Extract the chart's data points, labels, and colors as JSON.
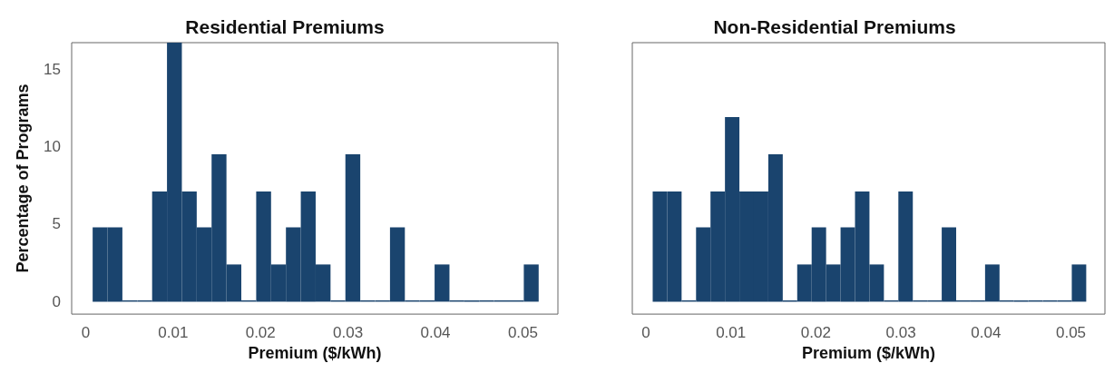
{
  "chart_data": [
    {
      "type": "histogram",
      "title": "Residential Premiums",
      "xlabel": "Premium ($/kWh)",
      "ylabel": "Percentage of Programs",
      "color": "#1a446e",
      "bins": [
        0.0008,
        0.0025,
        0.0042,
        0.0059,
        0.0076,
        0.0093,
        0.011,
        0.0127,
        0.0144,
        0.0161,
        0.0178,
        0.0195,
        0.0212,
        0.0229,
        0.0246,
        0.0263,
        0.028,
        0.0297,
        0.0314,
        0.0331,
        0.0348,
        0.0365,
        0.0382,
        0.0399,
        0.0416,
        0.0433,
        0.045,
        0.0467,
        0.0484,
        0.0501,
        0.0518
      ],
      "values": [
        4.8,
        4.8,
        0,
        0,
        7.1,
        16.7,
        7.1,
        4.8,
        9.5,
        2.4,
        0,
        7.1,
        2.4,
        4.8,
        7.1,
        2.4,
        0,
        9.5,
        0,
        0,
        4.8,
        0,
        0,
        2.4,
        0,
        0,
        0,
        0,
        0,
        2.4
      ],
      "xlim": [
        -0.0016,
        0.054
      ],
      "xticks": [
        0,
        0.01,
        0.02,
        0.03,
        0.04,
        0.05
      ],
      "ylim": [
        -0.8,
        16.7
      ],
      "yticks": [
        0,
        5,
        10,
        15
      ],
      "grid": false
    },
    {
      "type": "histogram",
      "title": "Non-Residential Premiums",
      "xlabel": "Premium ($/kWh)",
      "color": "#1a446e",
      "bins": [
        0.0008,
        0.0025,
        0.0042,
        0.0059,
        0.0076,
        0.0093,
        0.011,
        0.0127,
        0.0144,
        0.0161,
        0.0178,
        0.0195,
        0.0212,
        0.0229,
        0.0246,
        0.0263,
        0.028,
        0.0297,
        0.0314,
        0.0331,
        0.0348,
        0.0365,
        0.0382,
        0.0399,
        0.0416,
        0.0433,
        0.045,
        0.0467,
        0.0484,
        0.0501,
        0.0518
      ],
      "values": [
        7.1,
        7.1,
        0,
        4.8,
        7.1,
        11.9,
        7.1,
        7.1,
        9.5,
        0,
        2.4,
        4.8,
        2.4,
        4.8,
        7.1,
        2.4,
        0,
        7.1,
        0,
        0,
        4.8,
        0,
        0,
        2.4,
        0,
        0,
        0,
        0,
        0,
        2.4
      ],
      "xlim": [
        -0.0016,
        0.054
      ],
      "xticks": [
        0,
        0.01,
        0.02,
        0.03,
        0.04,
        0.05
      ],
      "ylim": [
        -0.8,
        16.7
      ],
      "yticks": [
        0,
        5,
        10,
        15
      ],
      "grid": false,
      "tick_labels": "x"
    }
  ]
}
